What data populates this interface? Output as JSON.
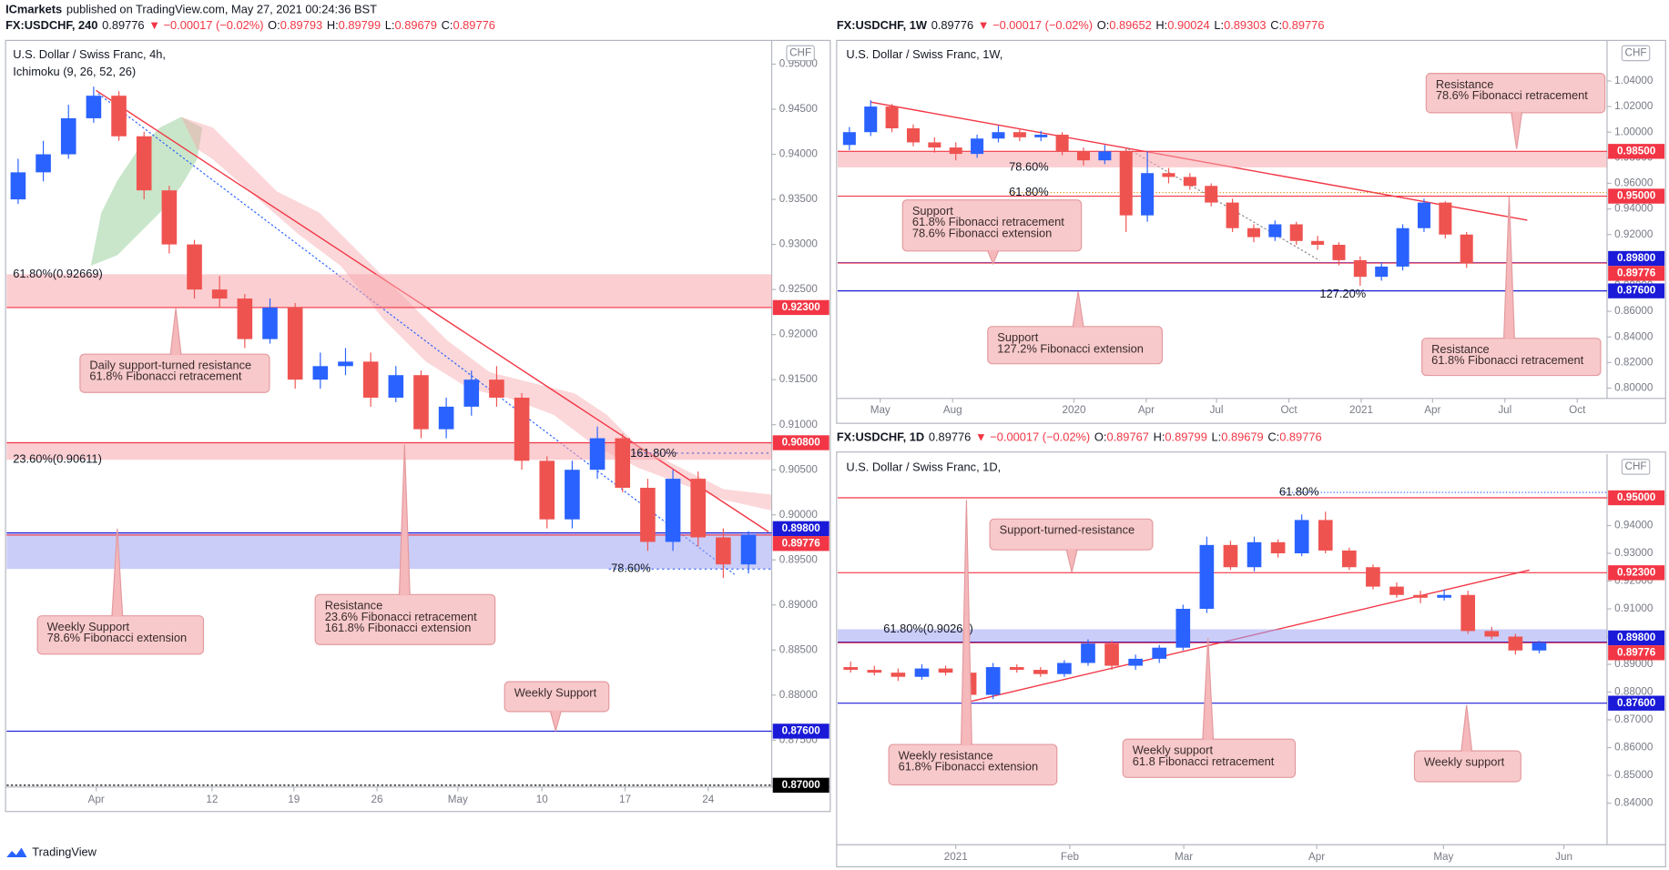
{
  "header": {
    "publisher": "ICmarkets",
    "text": "published on TradingView.com, May 27, 2021 00:24:36 BST"
  },
  "footer": {
    "brand": "TradingView"
  },
  "chart_data": [
    {
      "type": "candlestick",
      "quote": {
        "symbol": "FX:USDCHF, 240",
        "last": 0.89776,
        "change": "▼ −0.00017 (−0.02%)",
        "ohlc": [
          {
            "key": "O:",
            "value": 0.89793
          },
          {
            "key": "H:",
            "value": 0.89799
          },
          {
            "key": "L:",
            "value": 0.89679
          },
          {
            "key": "C:",
            "value": 0.89776
          }
        ]
      },
      "title": "U.S. Dollar / Swiss Franc, 4h,",
      "indicator": "Ichimoku (9, 26, 52, 26)",
      "currency": "CHF",
      "up_color": "#2962ff",
      "down_color": "#ef5350",
      "xlim": [
        0,
        30
      ],
      "ylim": [
        0.8698,
        0.9524
      ],
      "xticks": [
        {
          "value": 3.6,
          "label": "Apr"
        },
        {
          "value": 8.2,
          "label": "12"
        },
        {
          "value": 11.45,
          "label": "19"
        },
        {
          "value": 14.75,
          "label": "26"
        },
        {
          "value": 17.96,
          "label": "May"
        },
        {
          "value": 21.3,
          "label": "10"
        },
        {
          "value": 24.6,
          "label": "17"
        },
        {
          "value": 27.9,
          "label": "24"
        }
      ],
      "yticks": [
        {
          "value": 0.95,
          "label": "0.95000"
        },
        {
          "value": 0.945,
          "label": "0.94500"
        },
        {
          "value": 0.94,
          "label": "0.94000"
        },
        {
          "value": 0.935,
          "label": "0.93500"
        },
        {
          "value": 0.93,
          "label": "0.93000"
        },
        {
          "value": 0.925,
          "label": "0.92500"
        },
        {
          "value": 0.92,
          "label": "0.92000"
        },
        {
          "value": 0.915,
          "label": "0.91500"
        },
        {
          "value": 0.91,
          "label": "0.91000"
        },
        {
          "value": 0.905,
          "label": "0.90500"
        },
        {
          "value": 0.9,
          "label": "0.90000"
        },
        {
          "value": 0.895,
          "label": "0.89500"
        },
        {
          "value": 0.89,
          "label": "0.89000"
        },
        {
          "value": 0.885,
          "label": "0.88500"
        },
        {
          "value": 0.88,
          "label": "0.88000"
        },
        {
          "value": 0.875,
          "label": "0.87500"
        }
      ],
      "open": [
        0.935,
        0.938,
        0.94,
        0.944,
        0.9465,
        0.942,
        0.936,
        0.93,
        0.925,
        0.924,
        0.9195,
        0.923,
        0.915,
        0.9165,
        0.917,
        0.913,
        0.9155,
        0.9095,
        0.912,
        0.915,
        0.913,
        0.906,
        0.8995,
        0.905,
        0.9085,
        0.903,
        0.897,
        0.904,
        0.8975,
        0.8945
      ],
      "high": [
        0.9395,
        0.9415,
        0.9455,
        0.9475,
        0.947,
        0.9425,
        0.9365,
        0.9305,
        0.9265,
        0.9245,
        0.924,
        0.9235,
        0.918,
        0.9185,
        0.918,
        0.9165,
        0.916,
        0.913,
        0.916,
        0.9165,
        0.9135,
        0.9065,
        0.906,
        0.9098,
        0.909,
        0.904,
        0.905,
        0.9048,
        0.8985,
        0.8982
      ],
      "low": [
        0.9345,
        0.937,
        0.9395,
        0.9435,
        0.9415,
        0.935,
        0.929,
        0.924,
        0.923,
        0.9185,
        0.919,
        0.914,
        0.914,
        0.9155,
        0.912,
        0.9125,
        0.9085,
        0.9085,
        0.911,
        0.912,
        0.905,
        0.8985,
        0.8985,
        0.904,
        0.9025,
        0.896,
        0.896,
        0.8965,
        0.893,
        0.8935
      ],
      "close": [
        0.938,
        0.94,
        0.944,
        0.9465,
        0.942,
        0.936,
        0.93,
        0.925,
        0.924,
        0.9195,
        0.923,
        0.915,
        0.9165,
        0.917,
        0.913,
        0.9155,
        0.9095,
        0.912,
        0.915,
        0.913,
        0.906,
        0.8995,
        0.905,
        0.9085,
        0.903,
        0.897,
        0.904,
        0.8975,
        0.8945,
        0.8978
      ],
      "zones": [
        {
          "from": 0.923,
          "to": 0.92669,
          "color": "#f7a6ab"
        },
        {
          "from": 0.90611,
          "to": 0.908,
          "color": "#f7a6ab"
        },
        {
          "from": 0.894,
          "to": 0.898,
          "color": "#9fa4f2"
        }
      ],
      "levels": [
        {
          "value": 0.923,
          "label": "0.92300",
          "color": "#f23645"
        },
        {
          "value": 0.908,
          "label": "0.90800",
          "color": "#f23645"
        },
        {
          "value": 0.898,
          "label": "0.89800",
          "color": "#1a1ad8"
        },
        {
          "value": 0.89776,
          "label": "0.89776",
          "color": "#f23645"
        },
        {
          "value": 0.876,
          "label": "0.87600",
          "color": "#1a1ad8"
        },
        {
          "value": 0.87,
          "label": "0.87000",
          "color": "#000000"
        }
      ],
      "fibs": [
        {
          "label": "61.80%(0.92669)",
          "level": 0.92669,
          "color": "#e08a00"
        },
        {
          "label": "23.60%(0.90611)",
          "level": 0.90611,
          "color": "#2962ff"
        },
        {
          "label": "161.80%",
          "level": 0.9068,
          "color": "#2962ff"
        },
        {
          "label": "78.60%",
          "level": 0.894,
          "color": "#2962ff"
        }
      ],
      "callouts": [
        {
          "lines": [
            "Daily support-turned resistance",
            "61.8% Fibonacci retracement"
          ]
        },
        {
          "lines": [
            "Resistance",
            "23.6% Fibonacci retracement",
            "161.8% Fibonacci extension"
          ]
        },
        {
          "lines": [
            "Weekly Support",
            "78.6% Fibonacci extension"
          ]
        },
        {
          "lines": [
            "Weekly Support"
          ]
        }
      ]
    },
    {
      "type": "candlestick",
      "quote": {
        "symbol": "FX:USDCHF, 1W",
        "last": 0.89776,
        "change": "▼ −0.00017 (−0.02%)",
        "ohlc": [
          {
            "key": "O:",
            "value": 0.89652
          },
          {
            "key": "H:",
            "value": 0.90024
          },
          {
            "key": "L:",
            "value": 0.89303
          },
          {
            "key": "C:",
            "value": 0.89776
          }
        ]
      },
      "title": "U.S. Dollar / Swiss Franc, 1W,",
      "currency": "CHF",
      "up_color": "#2962ff",
      "down_color": "#ef5350",
      "xlim": [
        0,
        36
      ],
      "ylim": [
        0.792,
        1.07
      ],
      "xticks": [
        {
          "value": 1.95,
          "label": "May"
        },
        {
          "value": 5.35,
          "label": "Aug"
        },
        {
          "value": 11.05,
          "label": "2020"
        },
        {
          "value": 14.45,
          "label": "Apr"
        },
        {
          "value": 17.75,
          "label": "Jul"
        },
        {
          "value": 21.15,
          "label": "Oct"
        },
        {
          "value": 24.55,
          "label": "2021"
        },
        {
          "value": 27.9,
          "label": "Apr"
        },
        {
          "value": 31.3,
          "label": "Jul"
        },
        {
          "value": 34.7,
          "label": "Oct"
        }
      ],
      "yticks": [
        {
          "value": 1.04,
          "label": "1.04000"
        },
        {
          "value": 1.02,
          "label": "1.02000"
        },
        {
          "value": 1,
          "label": "1.00000"
        },
        {
          "value": 0.98,
          "label": "0.98000"
        },
        {
          "value": 0.96,
          "label": "0.96000"
        },
        {
          "value": 0.94,
          "label": "0.94000"
        },
        {
          "value": 0.92,
          "label": "0.92000"
        },
        {
          "value": 0.9,
          "label": "0.90000"
        },
        {
          "value": 0.88,
          "label": "0.88000"
        },
        {
          "value": 0.86,
          "label": "0.86000"
        },
        {
          "value": 0.84,
          "label": "0.84000"
        },
        {
          "value": 0.82,
          "label": "0.82000"
        },
        {
          "value": 0.8,
          "label": "0.80000"
        }
      ],
      "open": [
        0.99,
        1,
        1.02,
        1.003,
        0.992,
        0.988,
        0.983,
        0.995,
        1,
        0.996,
        0.998,
        0.985,
        0.978,
        0.985,
        0.935,
        0.968,
        0.965,
        0.958,
        0.945,
        0.925,
        0.918,
        0.928,
        0.915,
        0.912,
        0.9,
        0.887,
        0.895,
        0.925,
        0.945,
        0.92
      ],
      "high": [
        1.004,
        1.025,
        1.022,
        1.006,
        0.996,
        0.992,
        0.998,
        1.005,
        1.003,
        1.001,
        1,
        0.988,
        0.99,
        0.988,
        0.985,
        0.972,
        0.968,
        0.96,
        0.948,
        0.928,
        0.931,
        0.93,
        0.919,
        0.914,
        0.903,
        0.898,
        0.928,
        0.948,
        0.946,
        0.922
      ],
      "low": [
        0.986,
        0.997,
        1,
        0.989,
        0.984,
        0.978,
        0.98,
        0.992,
        0.993,
        0.993,
        0.982,
        0.974,
        0.975,
        0.922,
        0.93,
        0.96,
        0.955,
        0.942,
        0.922,
        0.914,
        0.915,
        0.912,
        0.908,
        0.896,
        0.88,
        0.884,
        0.892,
        0.922,
        0.917,
        0.894
      ],
      "close": [
        1,
        1.02,
        1.003,
        0.992,
        0.988,
        0.983,
        0.995,
        1,
        0.996,
        0.998,
        0.985,
        0.978,
        0.985,
        0.935,
        0.968,
        0.965,
        0.958,
        0.945,
        0.925,
        0.918,
        0.928,
        0.915,
        0.912,
        0.9,
        0.887,
        0.895,
        0.925,
        0.945,
        0.92,
        0.8977
      ],
      "zones": [
        {
          "from": 0.9725,
          "to": 0.985,
          "color": "#f7a6ab"
        }
      ],
      "levels": [
        {
          "value": 0.985,
          "label": "0.98500",
          "color": "#f23645"
        },
        {
          "value": 0.95,
          "label": "0.95000",
          "color": "#f23645"
        },
        {
          "value": 0.898,
          "label": "0.89800",
          "color": "#1a1ad8"
        },
        {
          "value": 0.89776,
          "label": "0.89776",
          "color": "#f23645"
        },
        {
          "value": 0.876,
          "label": "0.87600",
          "color": "#1a1ad8"
        }
      ],
      "fibs": [
        {
          "label": "78.60%",
          "level": 0.9725,
          "color": "#5a6acf"
        },
        {
          "label": "61.80%",
          "level": 0.9528,
          "color": "#e08a00"
        },
        {
          "label": "127.20%",
          "level": 0.873,
          "color": "#5a6acf"
        }
      ],
      "callouts": [
        {
          "lines": [
            "Resistance",
            "78.6% Fibonacci retracement"
          ]
        },
        {
          "lines": [
            "Support",
            "61.8% Fibonacci retracement",
            "78.6% Fibonacci extension"
          ]
        },
        {
          "lines": [
            "Support",
            "127.2% Fibonacci extension"
          ]
        },
        {
          "lines": [
            "Resistance",
            "61.8% Fibonacci retracement"
          ]
        }
      ]
    },
    {
      "type": "candlestick",
      "quote": {
        "symbol": "FX:USDCHF, 1D",
        "last": 0.89776,
        "change": "▼ −0.00017 (−0.02%)",
        "ohlc": [
          {
            "key": "O:",
            "value": 0.89767
          },
          {
            "key": "H:",
            "value": 0.89799
          },
          {
            "key": "L:",
            "value": 0.89679
          },
          {
            "key": "C:",
            "value": 0.89776
          }
        ]
      },
      "title": "U.S. Dollar / Swiss Franc, 1D,",
      "currency": "CHF",
      "up_color": "#2962ff",
      "down_color": "#ef5350",
      "xlim": [
        0,
        32
      ],
      "ylim": [
        0.825,
        0.965
      ],
      "xticks": [
        {
          "value": 4.93,
          "label": "2021"
        },
        {
          "value": 9.73,
          "label": "Feb"
        },
        {
          "value": 14.53,
          "label": "Mar"
        },
        {
          "value": 20.13,
          "label": "Apr"
        },
        {
          "value": 25.47,
          "label": "May"
        },
        {
          "value": 30.54,
          "label": "Jun"
        }
      ],
      "yticks": [
        {
          "value": 0.95,
          "label": "0.95000"
        },
        {
          "value": 0.94,
          "label": "0.94000"
        },
        {
          "value": 0.93,
          "label": "0.93000"
        },
        {
          "value": 0.92,
          "label": "0.92000"
        },
        {
          "value": 0.91,
          "label": "0.91000"
        },
        {
          "value": 0.9,
          "label": "0.90000"
        },
        {
          "value": 0.89,
          "label": "0.89000"
        },
        {
          "value": 0.88,
          "label": "0.88000"
        },
        {
          "value": 0.87,
          "label": "0.87000"
        },
        {
          "value": 0.86,
          "label": "0.86000"
        },
        {
          "value": 0.85,
          "label": "0.85000"
        },
        {
          "value": 0.84,
          "label": "0.84000"
        }
      ],
      "open": [
        0.889,
        0.888,
        0.887,
        0.8855,
        0.8885,
        0.887,
        0.879,
        0.889,
        0.888,
        0.8865,
        0.8905,
        0.8975,
        0.8895,
        0.892,
        0.896,
        0.91,
        0.933,
        0.925,
        0.934,
        0.93,
        0.942,
        0.931,
        0.925,
        0.918,
        0.915,
        0.914,
        0.915,
        0.902,
        0.9,
        0.895
      ],
      "high": [
        0.891,
        0.8895,
        0.8885,
        0.89,
        0.8895,
        0.888,
        0.8905,
        0.89,
        0.889,
        0.8915,
        0.899,
        0.8985,
        0.8935,
        0.897,
        0.9115,
        0.936,
        0.9345,
        0.936,
        0.935,
        0.944,
        0.945,
        0.932,
        0.926,
        0.9195,
        0.9165,
        0.917,
        0.9165,
        0.9035,
        0.901,
        0.8985
      ],
      "low": [
        0.887,
        0.886,
        0.884,
        0.8845,
        0.886,
        0.878,
        0.8775,
        0.887,
        0.8855,
        0.8855,
        0.8895,
        0.888,
        0.888,
        0.8905,
        0.895,
        0.9085,
        0.924,
        0.9235,
        0.9285,
        0.929,
        0.93,
        0.924,
        0.917,
        0.914,
        0.912,
        0.913,
        0.901,
        0.899,
        0.8935,
        0.894
      ],
      "close": [
        0.888,
        0.887,
        0.8855,
        0.8885,
        0.887,
        0.879,
        0.889,
        0.888,
        0.8865,
        0.8905,
        0.8975,
        0.8895,
        0.892,
        0.896,
        0.91,
        0.933,
        0.925,
        0.934,
        0.93,
        0.942,
        0.931,
        0.925,
        0.918,
        0.915,
        0.914,
        0.915,
        0.902,
        0.9,
        0.895,
        0.8978
      ],
      "zones": [
        {
          "from": 0.898,
          "to": 0.90264,
          "color": "#9fa4f2"
        }
      ],
      "levels": [
        {
          "value": 0.95,
          "label": "0.95000",
          "color": "#f23645"
        },
        {
          "value": 0.923,
          "label": "0.92300",
          "color": "#f23645"
        },
        {
          "value": 0.898,
          "label": "0.89800",
          "color": "#1a1ad8"
        },
        {
          "value": 0.89776,
          "label": "0.89776",
          "color": "#f23645"
        },
        {
          "value": 0.876,
          "label": "0.87600",
          "color": "#1a1ad8"
        }
      ],
      "fibs": [
        {
          "label": "61.80%",
          "level": 0.952,
          "color": "#2962ff"
        },
        {
          "label": "61.80%(0.90264)",
          "level": 0.90264,
          "color": "#e08a00"
        }
      ],
      "callouts": [
        {
          "lines": [
            "Support-turned-resistance"
          ]
        },
        {
          "lines": [
            "Weekly resistance",
            "61.8% Fibonacci extension"
          ]
        },
        {
          "lines": [
            "Weekly support",
            "61.8 Fibonacci retracement"
          ]
        },
        {
          "lines": [
            "Weekly support"
          ]
        }
      ]
    }
  ]
}
